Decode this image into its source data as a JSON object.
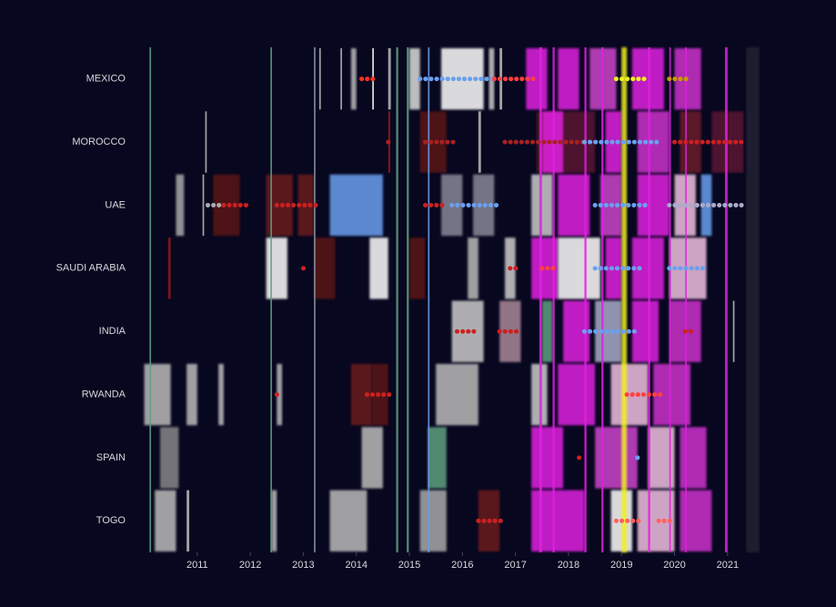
{
  "chart_data": {
    "type": "strip",
    "categories": [
      "MEXICO",
      "MOROCCO",
      "UAE",
      "SAUDI ARABIA",
      "INDIA",
      "RWANDA",
      "SPAIN",
      "TOGO"
    ],
    "xlim": [
      2010.06,
      2021.62
    ],
    "xticks": [
      2011,
      2012,
      2013,
      2014,
      2015,
      2016,
      2017,
      2018,
      2019,
      2020,
      2021
    ],
    "background": "#07071f",
    "lines": [
      [
        2010.1,
        2010.13,
        "#5fa080"
      ],
      [
        2012.38,
        2012.41,
        "#5fa080"
      ],
      [
        2013.2,
        2013.23,
        "#8899aa"
      ],
      [
        2014.75,
        2014.79,
        "#5fa080"
      ],
      [
        2014.95,
        2014.99,
        "#5fa080"
      ],
      [
        2015.35,
        2015.38,
        "#6aa0f0"
      ],
      [
        2017.45,
        2017.5,
        "#e020e0"
      ],
      [
        2017.7,
        2017.74,
        "#e020e0"
      ],
      [
        2018.3,
        2018.34,
        "#e020e0"
      ],
      [
        2018.62,
        2018.66,
        "#e020e0"
      ],
      [
        2019.0,
        2019.1,
        "#f0f020"
      ],
      [
        2019.5,
        2019.54,
        "#e020e0"
      ],
      [
        2019.9,
        2019.93,
        "#e020e0"
      ],
      [
        2020.2,
        2020.23,
        "#e020e0"
      ],
      [
        2020.95,
        2021.0,
        "#e020e0"
      ],
      [
        2021.35,
        2021.6,
        "#202036"
      ]
    ],
    "events": [
      [
        [
          2013.3,
          2013.33,
          "#bbbbbb"
        ],
        [
          2013.7,
          2013.73,
          "#bbbbbb"
        ],
        [
          2013.9,
          2014.0,
          "#bbbbbb"
        ],
        [
          2014.3,
          2014.33,
          "#ffffff"
        ],
        [
          2014.6,
          2014.65,
          "#bbbbbb"
        ],
        [
          2015.0,
          2015.2,
          "#dddddd"
        ],
        [
          2015.6,
          2016.4,
          "#ffffff"
        ],
        [
          2016.5,
          2016.6,
          "#cccccc"
        ],
        [
          2016.7,
          2016.75,
          "#bbbbbb"
        ],
        [
          2017.2,
          2017.6,
          "#e020e0"
        ],
        [
          2017.8,
          2018.2,
          "#e020e0"
        ],
        [
          2018.4,
          2018.9,
          "#cc44cc"
        ],
        [
          2019.2,
          2019.8,
          "#e020e0"
        ],
        [
          2020.0,
          2020.5,
          "#cc33cc"
        ]
      ],
      [
        [
          2011.15,
          2011.18,
          "#bbbbbb"
        ],
        [
          2014.6,
          2014.64,
          "#8b1a1a"
        ],
        [
          2015.2,
          2015.7,
          "#5a1515"
        ],
        [
          2016.3,
          2016.35,
          "#bbbbbb"
        ],
        [
          2017.4,
          2018.5,
          "#5a1530"
        ],
        [
          2017.5,
          2017.9,
          "#e020e0"
        ],
        [
          2018.7,
          2019.0,
          "#e020e0"
        ],
        [
          2019.3,
          2019.9,
          "#cc33cc"
        ],
        [
          2020.1,
          2020.5,
          "#6a1a2a"
        ],
        [
          2020.7,
          2021.3,
          "#5a1530"
        ]
      ],
      [
        [
          2010.6,
          2010.75,
          "#aaaaaa"
        ],
        [
          2011.1,
          2011.13,
          "#bbbbbb"
        ],
        [
          2011.3,
          2011.8,
          "#5a1515"
        ],
        [
          2012.3,
          2012.8,
          "#6a1a1a"
        ],
        [
          2012.9,
          2013.2,
          "#6a1a1a"
        ],
        [
          2013.5,
          2014.5,
          "#6aa0f0"
        ],
        [
          2015.6,
          2016.0,
          "#888899"
        ],
        [
          2016.2,
          2016.6,
          "#888899"
        ],
        [
          2017.3,
          2017.7,
          "#cccccc"
        ],
        [
          2017.8,
          2018.4,
          "#e020e0"
        ],
        [
          2018.6,
          2019.0,
          "#cc44cc"
        ],
        [
          2019.3,
          2019.9,
          "#e020e0"
        ],
        [
          2020.0,
          2020.4,
          "#f0c0e0"
        ],
        [
          2020.5,
          2020.7,
          "#6aa0f0"
        ]
      ],
      [
        [
          2010.45,
          2010.5,
          "#8b1a1a"
        ],
        [
          2012.3,
          2012.7,
          "#ffffff"
        ],
        [
          2013.2,
          2013.6,
          "#5a1515"
        ],
        [
          2014.25,
          2014.6,
          "#ffffff"
        ],
        [
          2015.0,
          2015.3,
          "#5a1515"
        ],
        [
          2016.1,
          2016.3,
          "#bbbbbb"
        ],
        [
          2016.8,
          2017.0,
          "#cccccc"
        ],
        [
          2017.3,
          2017.8,
          "#e020e0"
        ],
        [
          2017.8,
          2018.6,
          "#ffffff"
        ],
        [
          2018.7,
          2019.0,
          "#e020e0"
        ],
        [
          2019.2,
          2019.8,
          "#e020e0"
        ],
        [
          2019.9,
          2020.6,
          "#f0c0e0"
        ]
      ],
      [
        [
          2015.8,
          2016.4,
          "#cccccc"
        ],
        [
          2016.7,
          2017.1,
          "#aa8899"
        ],
        [
          2017.5,
          2017.7,
          "#5fa080"
        ],
        [
          2017.9,
          2018.4,
          "#e020e0"
        ],
        [
          2018.5,
          2019.0,
          "#aaaacc"
        ],
        [
          2019.2,
          2019.7,
          "#e020e0"
        ],
        [
          2019.9,
          2020.5,
          "#cc33cc"
        ],
        [
          2021.1,
          2021.13,
          "#bbbbbb"
        ]
      ],
      [
        [
          2010.0,
          2010.5,
          "#bbbbbb"
        ],
        [
          2010.8,
          2011.0,
          "#bbbbbb"
        ],
        [
          2011.4,
          2011.5,
          "#bbbbbb"
        ],
        [
          2012.5,
          2012.6,
          "#bbbbbb"
        ],
        [
          2013.9,
          2014.3,
          "#6a1a1a"
        ],
        [
          2014.3,
          2014.6,
          "#5a1515"
        ],
        [
          2015.5,
          2016.3,
          "#bbbbbb"
        ],
        [
          2017.3,
          2017.6,
          "#cccccc"
        ],
        [
          2017.8,
          2018.5,
          "#e020e0"
        ],
        [
          2018.8,
          2019.5,
          "#f0c0e0"
        ],
        [
          2019.6,
          2020.3,
          "#cc33cc"
        ]
      ],
      [
        [
          2010.3,
          2010.65,
          "#888888"
        ],
        [
          2014.1,
          2014.5,
          "#bbbbbb"
        ],
        [
          2015.35,
          2015.7,
          "#5fa080"
        ],
        [
          2017.3,
          2017.9,
          "#e020e0"
        ],
        [
          2018.5,
          2019.3,
          "#cc44cc"
        ],
        [
          2019.5,
          2020.0,
          "#f0c0e0"
        ],
        [
          2020.1,
          2020.6,
          "#cc33cc"
        ]
      ],
      [
        [
          2010.2,
          2010.6,
          "#bbbbbb"
        ],
        [
          2010.8,
          2010.85,
          "#bbbbbb"
        ],
        [
          2012.4,
          2012.5,
          "#bbbbbb"
        ],
        [
          2013.5,
          2014.2,
          "#bbbbbb"
        ],
        [
          2015.2,
          2015.7,
          "#aaaaaa"
        ],
        [
          2016.3,
          2016.7,
          "#6a1a1a"
        ],
        [
          2017.3,
          2018.3,
          "#e020e0"
        ],
        [
          2018.8,
          2019.2,
          "#ffffff"
        ],
        [
          2019.3,
          2020.0,
          "#f0c0e0"
        ],
        [
          2020.1,
          2020.7,
          "#cc33cc"
        ]
      ]
    ],
    "dots": [
      [
        [
          2014.1,
          2014.4,
          "#ff3020"
        ],
        [
          2015.2,
          2016.6,
          "#6aa0f0"
        ],
        [
          2016.6,
          2017.4,
          "#ff4040"
        ],
        [
          2018.9,
          2019.5,
          "#f0f020"
        ],
        [
          2019.9,
          2020.3,
          "#cc9900"
        ]
      ],
      [
        [
          2014.6,
          2014.7,
          "#aa2020"
        ],
        [
          2015.3,
          2015.9,
          "#aa2020"
        ],
        [
          2016.8,
          2018.3,
          "#aa2020"
        ],
        [
          2018.3,
          2019.7,
          "#6aa0f0"
        ],
        [
          2020.0,
          2021.3,
          "#cc2020"
        ]
      ],
      [
        [
          2011.2,
          2011.5,
          "#aaaaaa"
        ],
        [
          2011.5,
          2012.0,
          "#cc2020"
        ],
        [
          2012.5,
          2013.3,
          "#cc2020"
        ],
        [
          2015.3,
          2015.7,
          "#cc2020"
        ],
        [
          2015.8,
          2016.7,
          "#6aa0f0"
        ],
        [
          2018.5,
          2019.5,
          "#6aa0f0"
        ],
        [
          2019.9,
          2021.3,
          "#aaaacc"
        ]
      ],
      [
        [
          2013.0,
          2013.1,
          "#cc2020"
        ],
        [
          2016.9,
          2017.1,
          "#cc2020"
        ],
        [
          2017.5,
          2017.8,
          "#ff4040"
        ],
        [
          2018.5,
          2019.4,
          "#6aa0f0"
        ],
        [
          2019.9,
          2020.6,
          "#6aa0f0"
        ]
      ],
      [
        [
          2015.9,
          2016.3,
          "#cc2020"
        ],
        [
          2016.7,
          2017.1,
          "#cc2020"
        ],
        [
          2018.3,
          2019.3,
          "#6aa0f0"
        ],
        [
          2020.2,
          2020.4,
          "#cc2020"
        ]
      ],
      [
        [
          2012.5,
          2012.6,
          "#cc2020"
        ],
        [
          2014.2,
          2014.7,
          "#cc2020"
        ],
        [
          2019.1,
          2019.8,
          "#ff4040"
        ]
      ],
      [
        [
          2018.2,
          2018.3,
          "#cc2020"
        ],
        [
          2019.3,
          2019.4,
          "#6aa0f0"
        ]
      ],
      [
        [
          2016.3,
          2016.8,
          "#cc2020"
        ],
        [
          2018.9,
          2019.4,
          "#ff6060"
        ],
        [
          2019.7,
          2020.0,
          "#ff6060"
        ]
      ]
    ]
  }
}
